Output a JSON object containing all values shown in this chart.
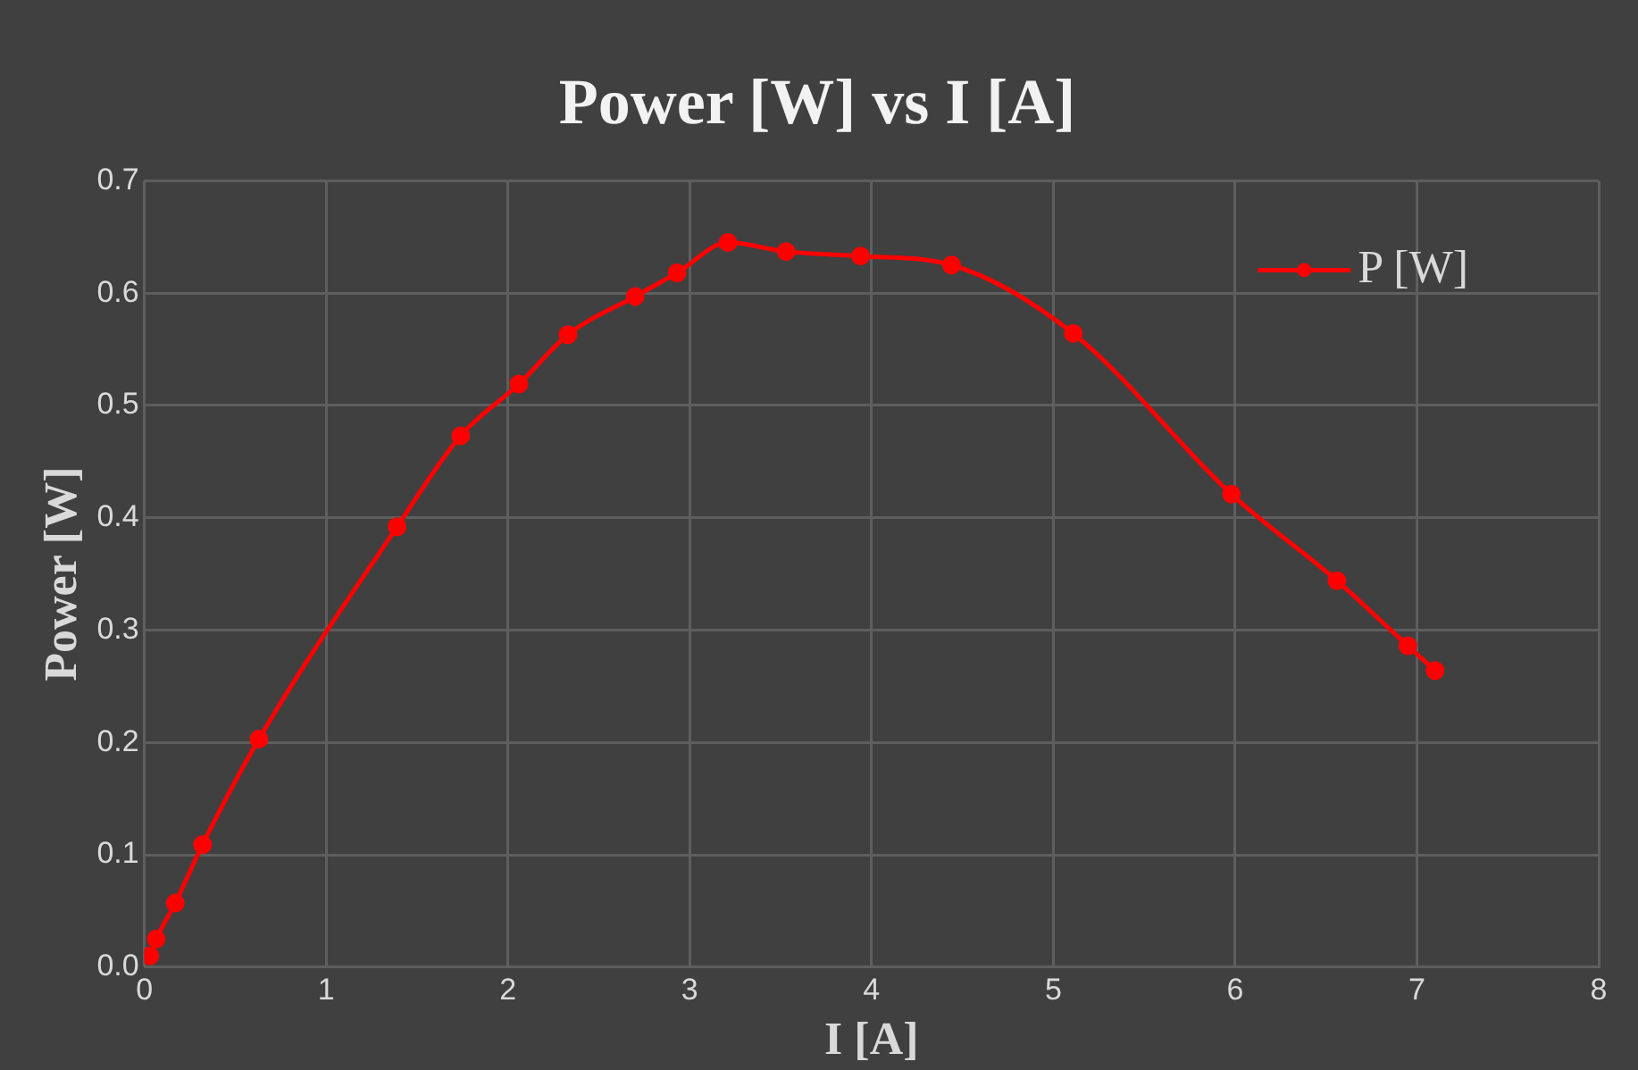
{
  "chart_data": {
    "type": "line",
    "title": "Power [W] vs I [A]",
    "xlabel": "I [A]",
    "ylabel": "Power [W]",
    "series": [
      {
        "name": "P [W]",
        "color": "#ff0000",
        "x": [
          0.03,
          0.065,
          0.17,
          0.32,
          0.63,
          1.39,
          1.74,
          2.06,
          2.33,
          2.7,
          2.93,
          3.21,
          3.53,
          3.94,
          4.44,
          5.11,
          5.98,
          6.56,
          6.95,
          7.1
        ],
        "values": [
          0.01,
          0.025,
          0.057,
          0.109,
          0.203,
          0.392,
          0.473,
          0.519,
          0.563,
          0.597,
          0.618,
          0.645,
          0.637,
          0.633,
          0.625,
          0.564,
          0.421,
          0.344,
          0.286,
          0.264
        ]
      }
    ],
    "xlim": [
      0,
      8
    ],
    "xticks": [
      0,
      1,
      2,
      3,
      4,
      5,
      6,
      7,
      8
    ],
    "ylim": [
      0,
      0.7
    ],
    "yticks": [
      {
        "value": 0,
        "label": "0.0"
      },
      0.1,
      0.2,
      0.3,
      0.4,
      0.5,
      0.6,
      0.7
    ],
    "grid": true,
    "legend": "top right",
    "marker": "circle",
    "line_style": "solid"
  }
}
